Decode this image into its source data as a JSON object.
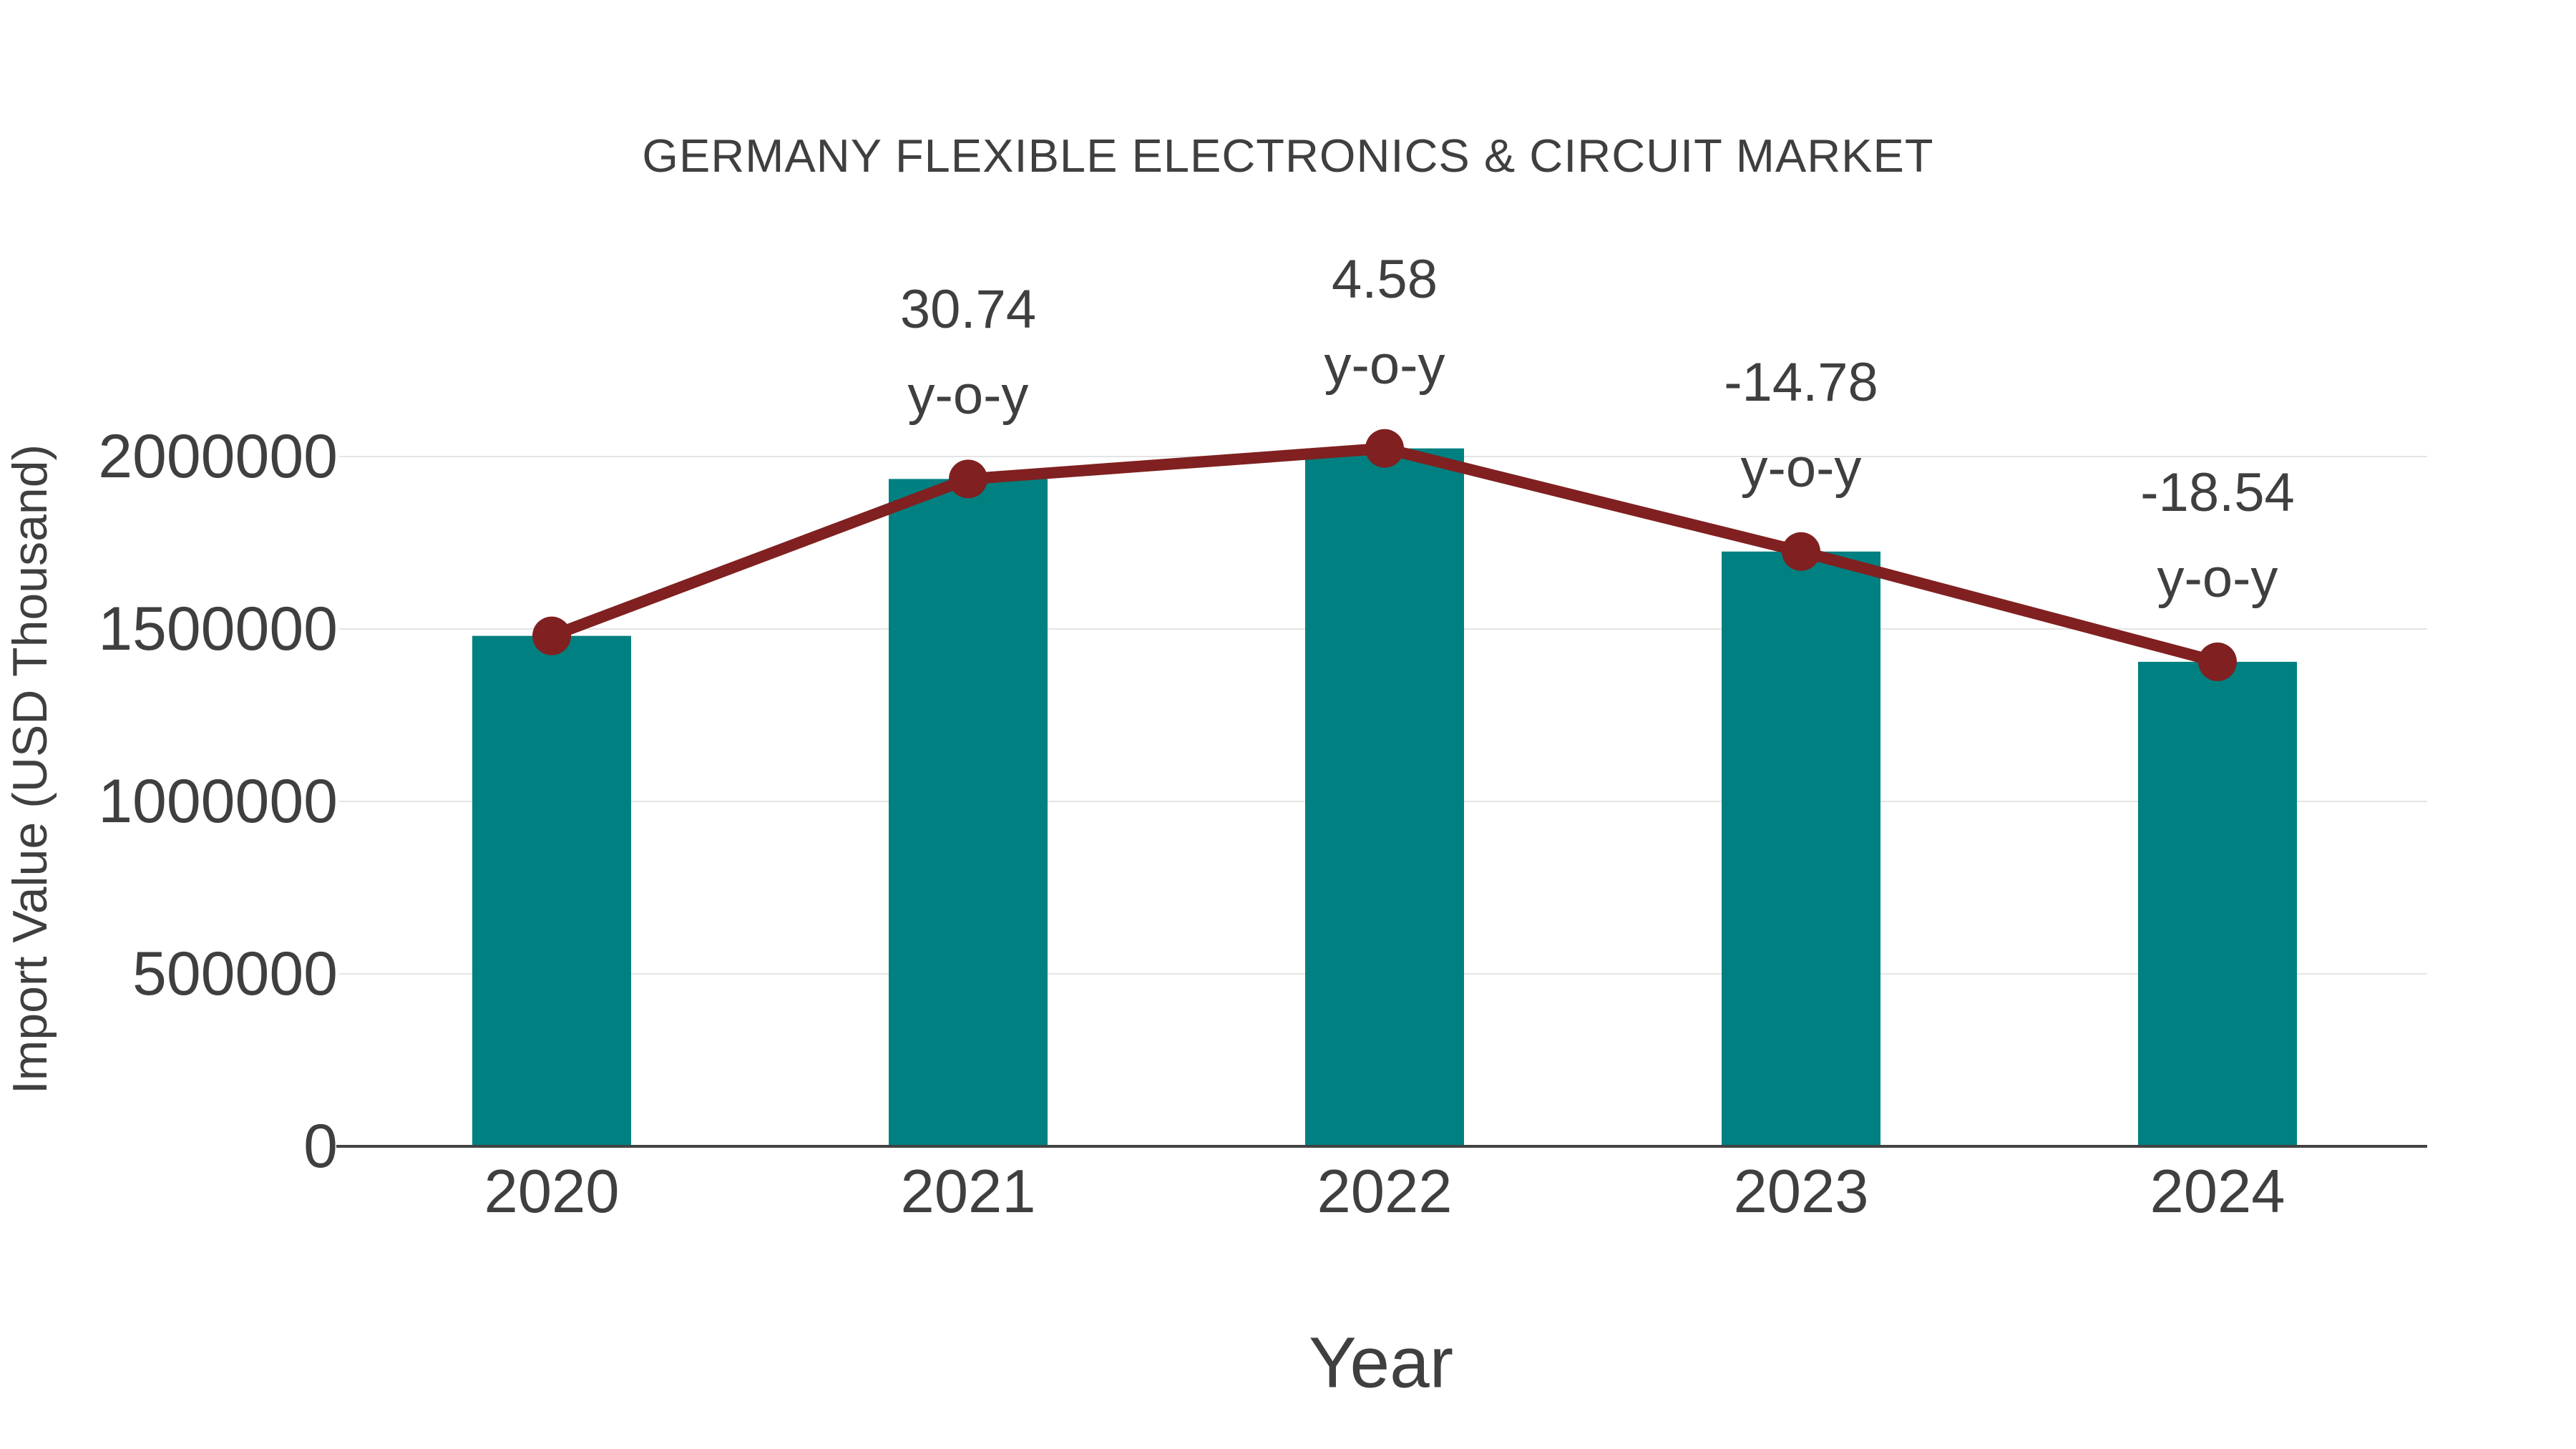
{
  "title": "GERMANY FLEXIBLE ELECTRONICS & CIRCUIT MARKET",
  "x_axis": {
    "label": "Year",
    "tick_labels": [
      "2020",
      "2021",
      "2022",
      "2023",
      "2024"
    ]
  },
  "y_axis": {
    "label": "Import Value (USD Thousand)",
    "tick_values": [
      0,
      500000,
      1000000,
      1500000,
      2000000
    ]
  },
  "chart_data": {
    "type": "bar",
    "title": "GERMANY FLEXIBLE ELECTRONICS & CIRCUIT MARKET",
    "xlabel": "Year",
    "ylabel": "Import Value (USD Thousand)",
    "categories": [
      "2020",
      "2021",
      "2022",
      "2023",
      "2024"
    ],
    "series": [
      {
        "name": "Import Value (USD Thousand)",
        "type": "bar",
        "color": "#008080",
        "values": [
          1480000,
          1934950,
          2023570,
          1724490,
          1404770
        ]
      },
      {
        "name": "y-o-y trend line",
        "type": "line",
        "color": "#802020",
        "values": [
          1480000,
          1934950,
          2023570,
          1724490,
          1404770
        ]
      }
    ],
    "annotations": [
      {
        "category": "2021",
        "line1": "30.74",
        "line2": "y-o-y"
      },
      {
        "category": "2022",
        "line1": "4.58",
        "line2": "y-o-y"
      },
      {
        "category": "2023",
        "line1": "-14.78",
        "line2": "y-o-y"
      },
      {
        "category": "2024",
        "line1": "-18.54",
        "line2": "y-o-y"
      }
    ],
    "yticks": [
      0,
      500000,
      1000000,
      1500000,
      2000000
    ],
    "ylim": [
      0,
      2100000
    ],
    "grid": true,
    "legend": false,
    "colors": {
      "bar": "#008080",
      "line": "#802020",
      "text": "#3f3f3f",
      "grid": "#e4e4e4",
      "axis": "#424242",
      "background": "#ffffff"
    }
  }
}
